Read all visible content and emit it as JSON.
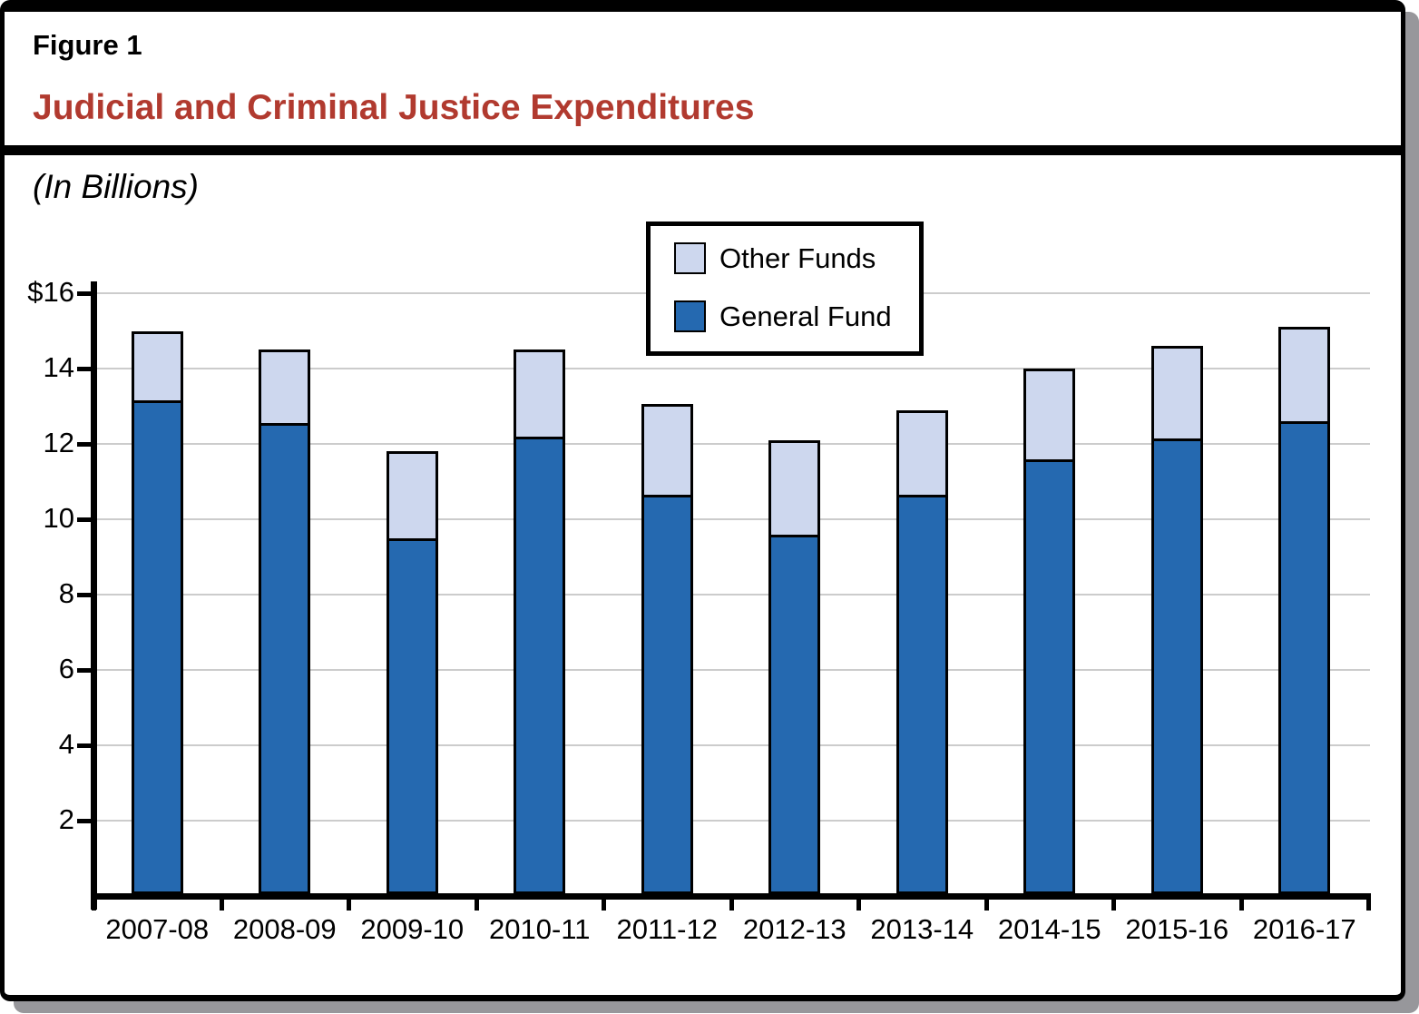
{
  "figure": {
    "label": "Figure 1",
    "title": "Judicial and Criminal Justice Expenditures",
    "subtitle": "(In Billions)"
  },
  "legend": {
    "items": [
      {
        "label": "Other Funds",
        "color": "#cdd7ee"
      },
      {
        "label": "General Fund",
        "color": "#2569b0"
      }
    ]
  },
  "colors": {
    "title_red": "#b13a2f",
    "general_fund": "#2569b0",
    "other_funds": "#cdd7ee",
    "gridline": "#cccccc",
    "axis": "#000000",
    "shadow": "#97979b"
  },
  "chart_data": {
    "type": "bar",
    "stacked": true,
    "title": "Judicial and Criminal Justice Expenditures",
    "subtitle": "(In Billions)",
    "xlabel": "",
    "ylabel": "",
    "units": "billions of dollars",
    "categories": [
      "2007-08",
      "2008-09",
      "2009-10",
      "2010-11",
      "2011-12",
      "2012-13",
      "2013-14",
      "2014-15",
      "2015-16",
      "2016-17"
    ],
    "series": [
      {
        "name": "General Fund",
        "color": "#2569b0",
        "values": [
          13.15,
          12.55,
          9.5,
          12.2,
          10.65,
          9.6,
          10.65,
          11.6,
          12.15,
          12.6
        ]
      },
      {
        "name": "Other Funds",
        "color": "#cdd7ee",
        "values": [
          1.85,
          1.95,
          2.3,
          2.3,
          2.4,
          2.5,
          2.25,
          2.4,
          2.45,
          2.5
        ]
      }
    ],
    "totals": [
      15.0,
      14.5,
      11.8,
      14.5,
      13.05,
      12.1,
      12.9,
      14.0,
      14.6,
      15.1
    ],
    "ylim": [
      0,
      16
    ],
    "yticks": [
      {
        "value": 16,
        "label": "$16"
      },
      {
        "value": 14,
        "label": "14"
      },
      {
        "value": 12,
        "label": "12"
      },
      {
        "value": 10,
        "label": "10"
      },
      {
        "value": 8,
        "label": "8"
      },
      {
        "value": 6,
        "label": "6"
      },
      {
        "value": 4,
        "label": "4"
      },
      {
        "value": 2,
        "label": "2"
      }
    ],
    "grid": "horizontal",
    "legend_position": "inside-top-center"
  }
}
